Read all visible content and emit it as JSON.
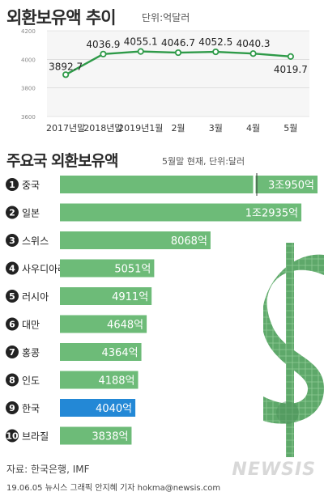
{
  "header": {
    "title": "외환보유액 추이",
    "unit": "단위:억달러"
  },
  "chart_data": [
    {
      "type": "line",
      "title": "외환보유액 추이",
      "unit": "단위:억달러",
      "categories": [
        "2017년말",
        "2018년말",
        "2019년1월",
        "2월",
        "3월",
        "4월",
        "5월"
      ],
      "series": [
        {
          "values": [
            3892.7,
            4036.9,
            4055.1,
            4046.7,
            4052.5,
            4040.3,
            4019.7
          ]
        }
      ],
      "value_labels": [
        "3892.7",
        "4036.9",
        "4055.1",
        "4046.7",
        "4052.5",
        "4040.3",
        "4019.7"
      ],
      "y_ticks": [
        "4200",
        "4000",
        "3800",
        "3600"
      ],
      "ylim": [
        3600,
        4200
      ],
      "grid": true,
      "color": "#2e9a48"
    },
    {
      "type": "bar",
      "title": "주요국 외환보유액",
      "unit": "5월말 현재, 단위:달러",
      "ranks": [
        "1",
        "2",
        "3",
        "4",
        "5",
        "6",
        "7",
        "8",
        "9",
        "10"
      ],
      "categories": [
        "중국",
        "일본",
        "스위스",
        "사우디아라비아",
        "러시아",
        "대만",
        "홍콩",
        "인도",
        "한국",
        "브라질"
      ],
      "values": [
        30950,
        12935,
        8068,
        5051,
        4911,
        4648,
        4364,
        4188,
        4040,
        3838
      ],
      "value_labels": [
        "3조950억",
        "1조2935억",
        "8068억",
        "5051억",
        "4911억",
        "4648억",
        "4364억",
        "4188억",
        "4040억",
        "3838억"
      ],
      "color": "#6dbb78",
      "highlight_color": "#2388d6",
      "highlight_index": 8,
      "axis_break_on_first": true
    }
  ],
  "footer": {
    "source": "자료: 한국은행, IMF",
    "credit": "19.06.05 뉴시스 그래픽 안지혜 기자 hokma@newsis.com",
    "logo": "NEWSIS"
  }
}
